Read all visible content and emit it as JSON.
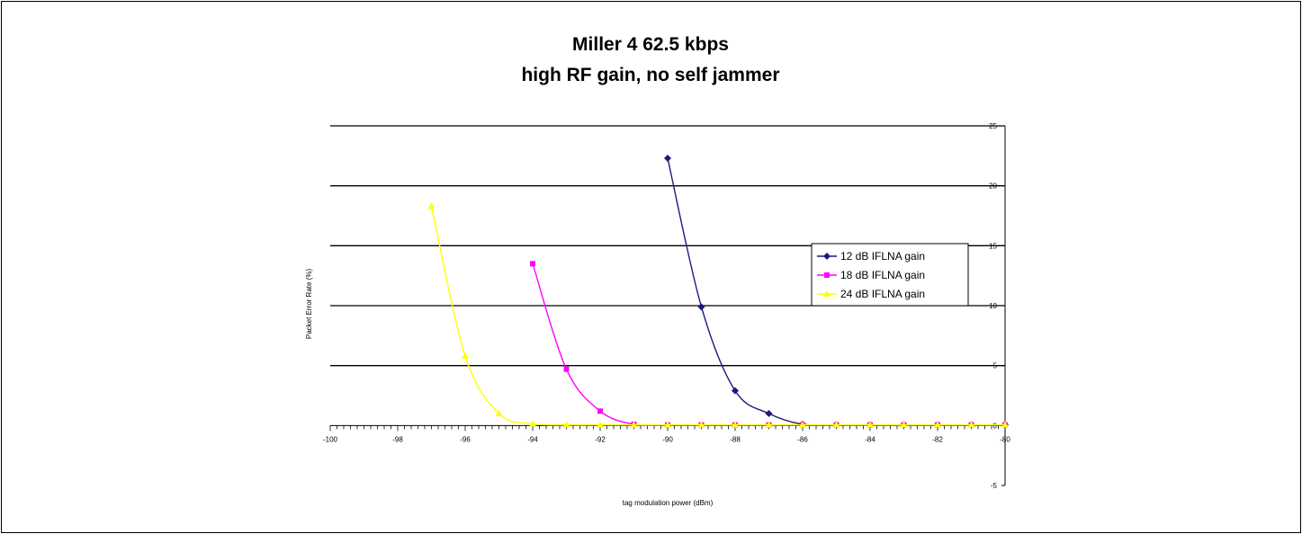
{
  "chart_data": {
    "type": "line",
    "title": [
      "Miller 4 62.5 kbps",
      "high RF gain, no self jammer"
    ],
    "xlabel": "tag modulation power (dBm)",
    "ylabel": "Packet Error Rate (%)",
    "xlim": [
      -100,
      -80
    ],
    "ylim": [
      -5,
      25
    ],
    "xticks": [
      -100,
      -98,
      -96,
      -94,
      -92,
      -90,
      -88,
      -86,
      -84,
      -82,
      -80
    ],
    "yticks": [
      -5,
      0,
      5,
      10,
      15,
      20,
      25
    ],
    "grid": "horizontal",
    "legend_position": "right",
    "series": [
      {
        "name": "12 dB IFLNA gain",
        "color": "#1a1a80",
        "marker": "diamond",
        "x": [
          -90,
          -89,
          -88,
          -87,
          -86,
          -85,
          -84,
          -83,
          -82,
          -81,
          -80
        ],
        "y": [
          22.3,
          9.9,
          2.9,
          1.0,
          0.1,
          0.05,
          0.05,
          0.05,
          0.05,
          0.05,
          0.05
        ]
      },
      {
        "name": "18 dB IFLNA gain",
        "color": "#ff00ff",
        "marker": "square",
        "x": [
          -94,
          -93,
          -92,
          -91,
          -90,
          -89,
          -88,
          -87,
          -86,
          -85,
          -84,
          -83,
          -82,
          -81,
          -80
        ],
        "y": [
          13.5,
          4.7,
          1.2,
          0.1,
          0.05,
          0.05,
          0.05,
          0.05,
          0.05,
          0.05,
          0.05,
          0.05,
          0.05,
          0.05,
          0.05
        ]
      },
      {
        "name": "24 dB IFLNA gain",
        "color": "#ffff00",
        "marker": "triangle",
        "x": [
          -97,
          -96,
          -95,
          -94,
          -93,
          -92,
          -91,
          -90,
          -89,
          -88,
          -87,
          -86,
          -85,
          -84,
          -83,
          -82,
          -81,
          -80
        ],
        "y": [
          18.3,
          5.8,
          1.0,
          0.15,
          0.05,
          0.05,
          0.05,
          0.05,
          0.05,
          0.05,
          0.05,
          0.05,
          0.05,
          0.05,
          0.05,
          0.05,
          0.05,
          0.05
        ]
      }
    ]
  }
}
